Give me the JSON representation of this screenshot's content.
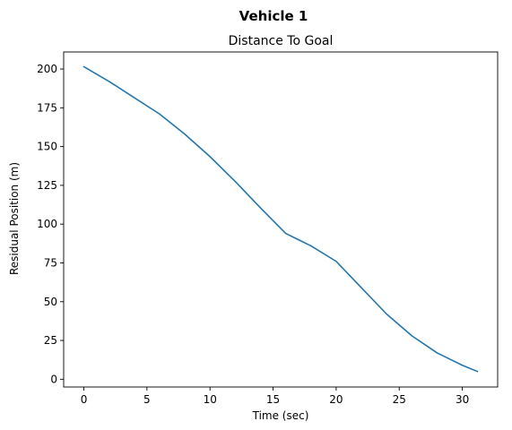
{
  "figure": {
    "suptitle": "Vehicle 1"
  },
  "chart_data": {
    "type": "line",
    "title": "Distance To Goal",
    "xlabel": "Time (sec)",
    "ylabel": "Residual Position (m)",
    "xlim": [
      -1.6,
      32.8
    ],
    "ylim": [
      -5,
      211
    ],
    "xticks": [
      0,
      5,
      10,
      15,
      20,
      25,
      30
    ],
    "yticks": [
      0,
      25,
      50,
      75,
      100,
      125,
      150,
      175,
      200
    ],
    "grid": false,
    "legend": "none",
    "series": [
      {
        "color": "#1f77b4",
        "x": [
          0,
          2,
          4,
          6,
          8,
          10,
          12,
          14,
          16,
          17,
          18,
          20,
          22,
          24,
          26,
          28,
          30,
          31.2
        ],
        "y": [
          201.5,
          192,
          181.5,
          171,
          158,
          143.5,
          127.5,
          110.5,
          94,
          90,
          86,
          76,
          59,
          42,
          28,
          17,
          9,
          5
        ]
      }
    ]
  }
}
